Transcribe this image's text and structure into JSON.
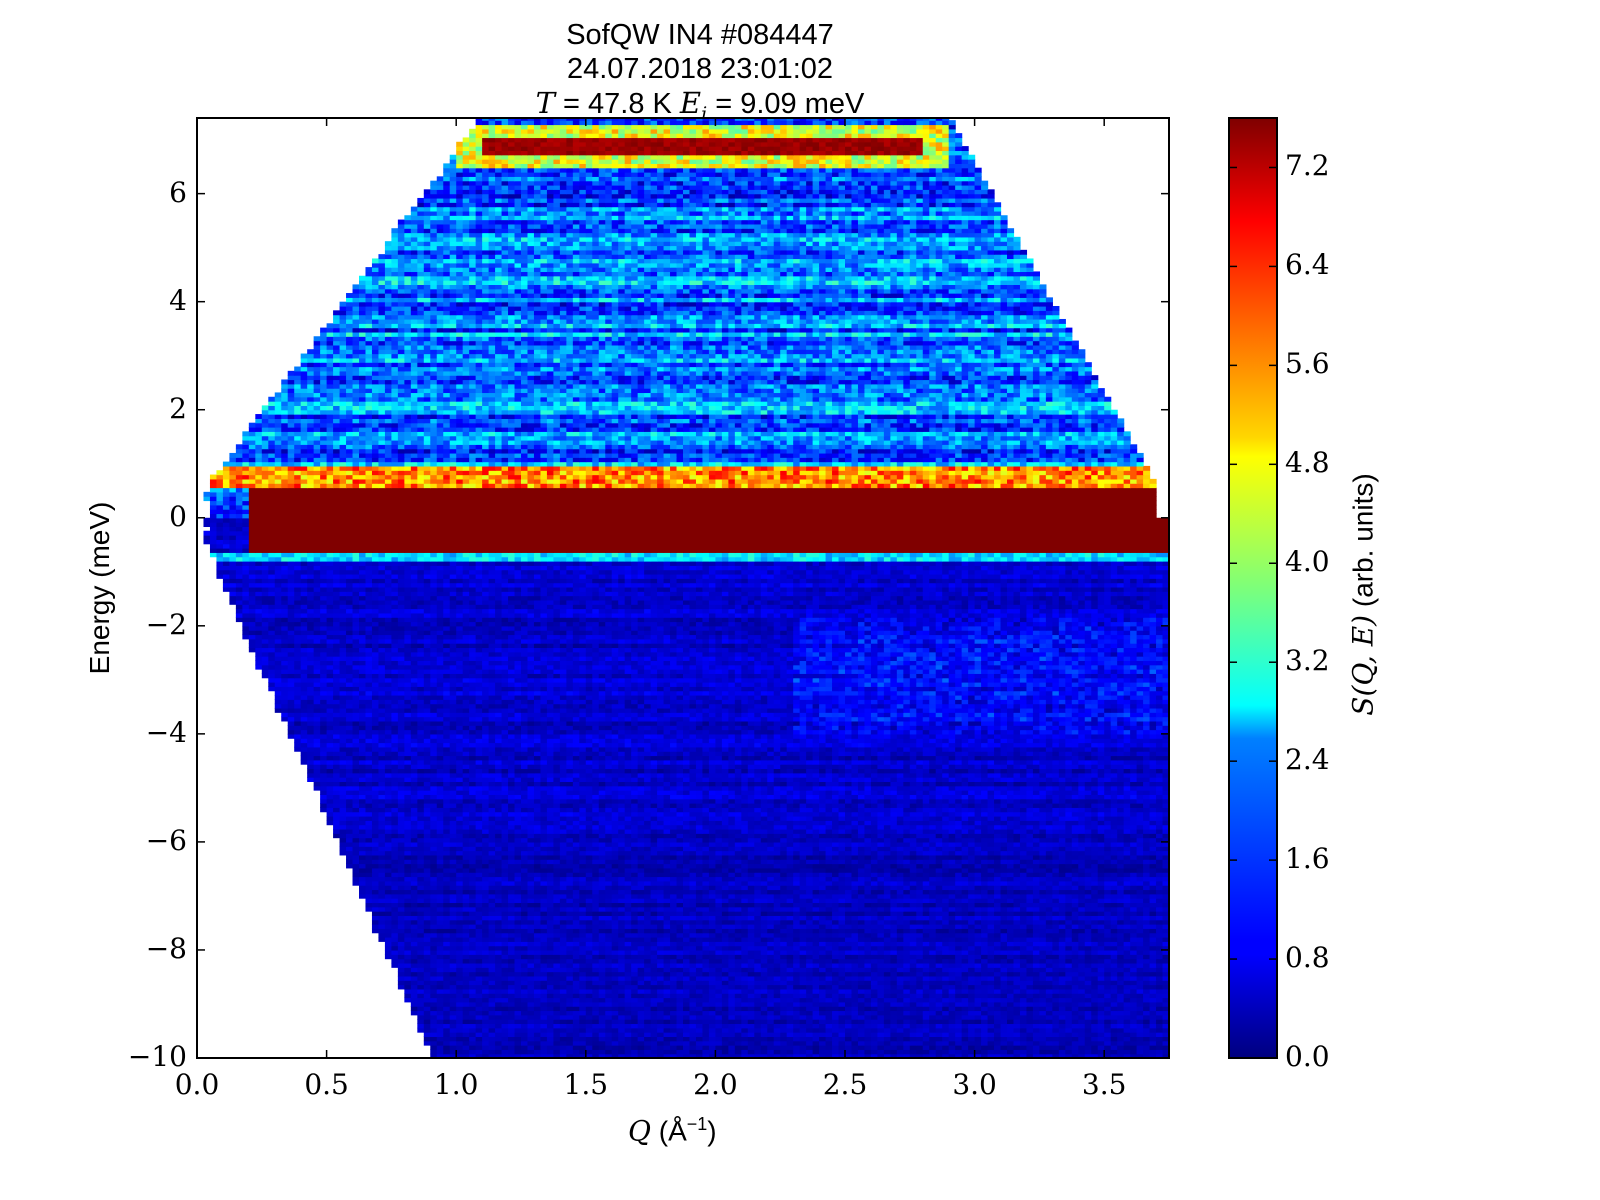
{
  "chart_data": {
    "type": "heatmap",
    "title_lines": [
      "SofQW IN4 #084447",
      "24.07.2018 23:01:02"
    ],
    "title_line3": {
      "T_symbol": "T",
      "T_text": " = 47.8 K ",
      "E_symbol": "E",
      "E_sub": "i",
      "E_text": " = 9.09 meV"
    },
    "xlabel": {
      "symbol": "Q",
      "text": " (Å",
      "sup": "−1",
      "close": ")"
    },
    "ylabel": "Energy (meV)",
    "xlim": [
      0.0,
      3.75
    ],
    "ylim": [
      -10,
      7.4
    ],
    "xticks": [
      "0.0",
      "0.5",
      "1.0",
      "1.5",
      "2.0",
      "2.5",
      "3.0",
      "3.5"
    ],
    "xtick_values": [
      0.0,
      0.5,
      1.0,
      1.5,
      2.0,
      2.5,
      3.0,
      3.5
    ],
    "yticks": [
      "6",
      "4",
      "2",
      "0",
      "−2",
      "−4",
      "−6",
      "−8",
      "−10"
    ],
    "ytick_values": [
      6,
      4,
      2,
      0,
      -2,
      -4,
      -6,
      -8,
      -10
    ],
    "colorbar": {
      "label_symbol": "S(Q, E)",
      "label_text": " (arb. units)",
      "range": [
        0.0,
        7.6
      ],
      "ticks": [
        "0.0",
        "0.8",
        "1.6",
        "2.4",
        "3.2",
        "4.0",
        "4.8",
        "5.6",
        "6.4",
        "7.2"
      ],
      "tick_values": [
        0.0,
        0.8,
        1.6,
        2.4,
        3.2,
        4.0,
        4.8,
        5.6,
        6.4,
        7.2
      ],
      "colormap": "jet"
    },
    "features": {
      "elastic_line": {
        "energy_range": [
          -0.6,
          0.6
        ],
        "q_range": [
          0.2,
          3.75
        ],
        "value": 7.6
      },
      "upper_band": {
        "energy": 6.9,
        "q_range": [
          1.1,
          2.8
        ],
        "value": 7.2
      },
      "background_positive_energy": 2.0,
      "background_negative_energy": 0.6,
      "kinematic_edges": {
        "upper_left": [
          [
            0.05,
            0.6
          ],
          [
            1.1,
            7.4
          ]
        ],
        "upper_right": [
          [
            2.9,
            7.4
          ],
          [
            3.7,
            0.6
          ]
        ],
        "lower_left": [
          [
            0.05,
            -0.6
          ],
          [
            0.92,
            -10
          ]
        ],
        "lower_right": [
          [
            3.75,
            -0.6
          ],
          [
            3.75,
            -10
          ]
        ]
      }
    },
    "grid": false
  }
}
